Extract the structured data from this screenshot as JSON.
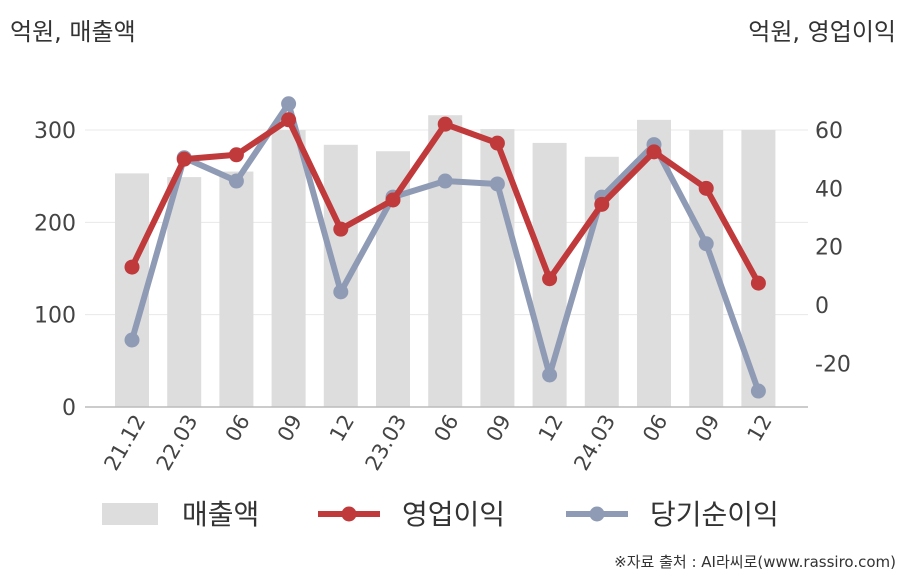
{
  "chart_data": {
    "type": "bar",
    "unit_left": "억원, 매출액",
    "unit_right": "억원, 영업이익",
    "categories": [
      "21.12",
      "22.03",
      "06",
      "09",
      "12",
      "23.03",
      "06",
      "09",
      "12",
      "24.03",
      "06",
      "09",
      "12"
    ],
    "left_axis": {
      "ylim": [
        0,
        345
      ],
      "ticks": [
        "0",
        "100",
        "200",
        "300"
      ],
      "tick_values": [
        0,
        100,
        200,
        300
      ]
    },
    "right_axis": {
      "ylim": [
        -35,
        72
      ],
      "ticks": [
        "-20",
        "0",
        "20",
        "40",
        "60"
      ],
      "tick_values": [
        -20,
        0,
        20,
        40,
        60
      ]
    },
    "series": [
      {
        "name": "매출액",
        "type": "bar",
        "axis": "left",
        "color": "#dddddd",
        "values": [
          253,
          249,
          255,
          300,
          284,
          277,
          316,
          301,
          286,
          271,
          311,
          300,
          300
        ]
      },
      {
        "name": "영업이익",
        "type": "line",
        "axis": "right",
        "color": "#c0393b",
        "values": [
          13,
          50,
          51.5,
          63.5,
          26,
          36,
          62,
          55.5,
          9,
          34.5,
          52.5,
          40,
          7.5
        ]
      },
      {
        "name": "당기순이익",
        "type": "line",
        "axis": "right",
        "color": "#8f9bb5",
        "values": [
          -12,
          50.5,
          42.5,
          69,
          4.5,
          37,
          42.5,
          41.5,
          -24,
          37,
          55,
          21,
          -29.5
        ]
      }
    ],
    "grid": true,
    "legend": "bottom"
  },
  "source": "※자료 출처 : AI라씨로(www.rassiro.com)"
}
